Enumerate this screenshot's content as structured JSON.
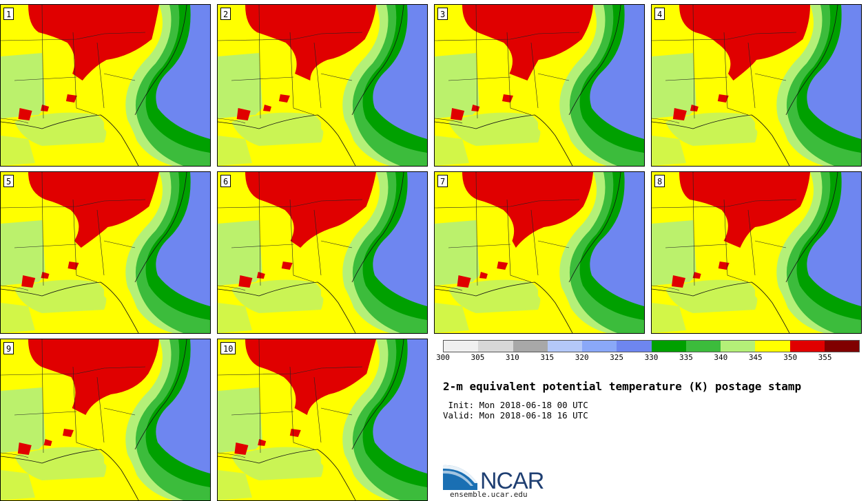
{
  "title": "2-m equivalent potential temperature (K) postage stamp",
  "init": " Init: Mon 2018-06-18 00 UTC",
  "valid": "Valid: Mon 2018-06-18 16 UTC",
  "panels": [
    "1",
    "2",
    "3",
    "4",
    "5",
    "6",
    "7",
    "8",
    "9",
    "10"
  ],
  "colorbar": {
    "colors": [
      "#f0f0f0",
      "#d8d8d8",
      "#a8a8a8",
      "#b4c8f8",
      "#8aa8f8",
      "#6e86f0",
      "#00a000",
      "#3cbc3c",
      "#b4f078",
      "#ffff00",
      "#e00000",
      "#800000"
    ],
    "ticks": [
      "300",
      "305",
      "310",
      "315",
      "320",
      "325",
      "330",
      "335",
      "340",
      "345",
      "350",
      "355"
    ]
  },
  "logo": {
    "text": "NCAR",
    "url_text": "ensemble.ucar.edu"
  },
  "colors": {
    "ocean": "#6e86f0",
    "coastal_dark": "#00a000",
    "coastal_mid": "#3cbc3c",
    "light_green": "#b4f078",
    "yellow": "#ffff00",
    "red": "#e00000"
  }
}
